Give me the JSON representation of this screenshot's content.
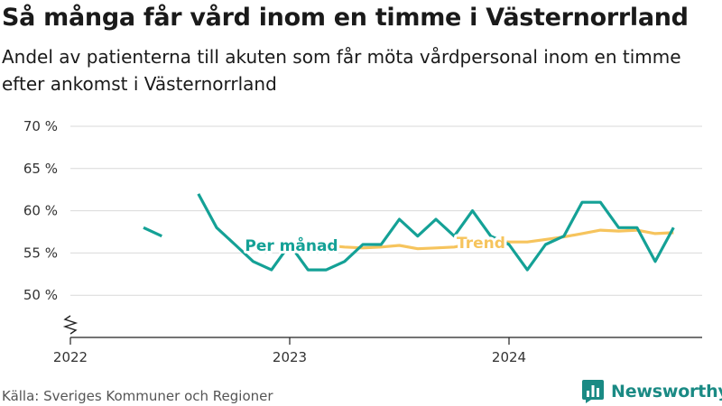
{
  "header": {
    "title": "Så många får vård inom en timme i Västernorrland",
    "subtitle": "Andel av patienterna till akuten som får möta vårdpersonal inom en timme efter ankomst i Västernorrland"
  },
  "footer": {
    "source": "Källa: Sveriges Kommuner och Regioner",
    "brand": "Newsworthy"
  },
  "icons": {
    "brand_logo": "bar-chart-logo-icon"
  },
  "colors": {
    "monthly": "#14a196",
    "trend": "#f6c45d",
    "grid": "#d9d9d9",
    "axis": "#222222",
    "tick_text": "#333333",
    "brand": "#1a8a84"
  },
  "chart_data": {
    "type": "line",
    "ylim": [
      45,
      70
    ],
    "y_ticks": [
      50,
      55,
      60,
      65,
      70
    ],
    "y_tick_labels": [
      "50 %",
      "55 %",
      "60 %",
      "65 %",
      "70 %"
    ],
    "y_axis_break": true,
    "x_ticks": [
      "2022-01-01",
      "2023-01-01",
      "2024-01-01"
    ],
    "x_tick_labels": [
      "2022",
      "2023",
      "2024"
    ],
    "x_range": [
      "2022-01-01",
      "2024-12-01"
    ],
    "grid": true,
    "series": [
      {
        "name": "Per månad",
        "color": "#14a196",
        "x": [
          "2022-05",
          "2022-06",
          "2022-07",
          "2022-08",
          "2022-09",
          "2022-10",
          "2022-11",
          "2022-12",
          "2023-01",
          "2023-02",
          "2023-03",
          "2023-04",
          "2023-05",
          "2023-06",
          "2023-07",
          "2023-08",
          "2023-09",
          "2023-10",
          "2023-11",
          "2023-12",
          "2024-01",
          "2024-02",
          "2024-03",
          "2024-04",
          "2024-05",
          "2024-06",
          "2024-07",
          "2024-08",
          "2024-09",
          "2024-10"
        ],
        "values": [
          58,
          57,
          null,
          62,
          58,
          56,
          54,
          53,
          56,
          53,
          53,
          54,
          56,
          56,
          59,
          57,
          59,
          57,
          60,
          57,
          56,
          53,
          56,
          57,
          61,
          61,
          58,
          58,
          54,
          58
        ]
      },
      {
        "name": "Trend",
        "color": "#f6c45d",
        "x": [
          "2023-03",
          "2023-04",
          "2023-05",
          "2023-06",
          "2023-07",
          "2023-08",
          "2023-09",
          "2023-10",
          "2023-11",
          "2023-12",
          "2024-01",
          "2024-02",
          "2024-03",
          "2024-04",
          "2024-05",
          "2024-06",
          "2024-07",
          "2024-08",
          "2024-09",
          "2024-10"
        ],
        "values": [
          55.9,
          55.7,
          55.6,
          55.7,
          55.9,
          55.5,
          55.6,
          55.7,
          56.1,
          56.4,
          56.3,
          56.3,
          56.6,
          56.9,
          57.3,
          57.7,
          57.6,
          57.7,
          57.3,
          57.4
        ]
      }
    ],
    "annotations": [
      {
        "text": "Per månad",
        "series": "Per månad"
      },
      {
        "text": "Trend",
        "series": "Trend"
      }
    ]
  }
}
